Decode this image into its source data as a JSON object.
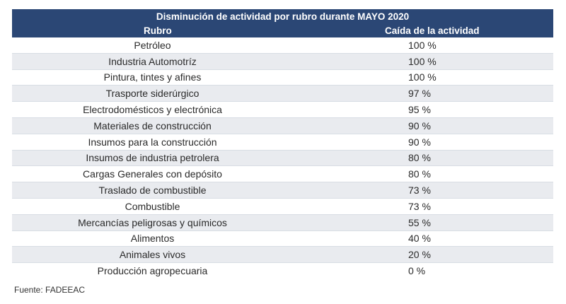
{
  "table": {
    "title": "Disminución de actividad por rubro durante MAYO 2020",
    "headers": {
      "rubro": "Rubro",
      "caida": "Caída de la actividad"
    },
    "rows": [
      {
        "rubro": "Petróleo",
        "caida": "100 %"
      },
      {
        "rubro": "Industria Automotríz",
        "caida": "100 %"
      },
      {
        "rubro": "Pintura, tintes y afines",
        "caida": "100 %"
      },
      {
        "rubro": "Trasporte siderúrgico",
        "caida": "97 %"
      },
      {
        "rubro": "Electrodomésticos y electrónica",
        "caida": "95 %"
      },
      {
        "rubro": "Materiales de construcción",
        "caida": "90 %"
      },
      {
        "rubro": "Insumos para la construcción",
        "caida": "90 %"
      },
      {
        "rubro": "Insumos de industria petrolera",
        "caida": "80 %"
      },
      {
        "rubro": "Cargas Generales con depósito",
        "caida": "80 %"
      },
      {
        "rubro": "Traslado de combustible",
        "caida": "73 %"
      },
      {
        "rubro": "Combustible",
        "caida": "73 %"
      },
      {
        "rubro": "Mercancías peligrosas y químicos",
        "caida": "55 %"
      },
      {
        "rubro": "Alimentos",
        "caida": "40 %"
      },
      {
        "rubro": "Animales vivos",
        "caida": "20 %"
      },
      {
        "rubro": "Producción agropecuaria",
        "caida": "0 %"
      }
    ]
  },
  "source": "Fuente: FADEEAC",
  "colors": {
    "header_bg": "#2b4775",
    "header_text": "#ffffff",
    "row_shade": "#e9ebef"
  }
}
